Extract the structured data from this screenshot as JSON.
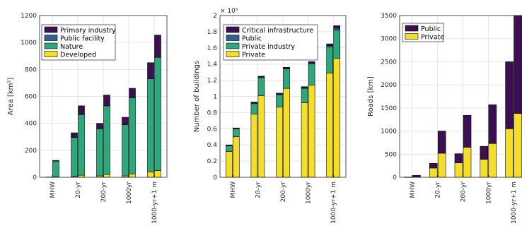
{
  "colors": {
    "purple": "#3b0f52",
    "blue": "#2f5f8a",
    "green": "#2ea87a",
    "yellow": "#f5de2a"
  },
  "chart_data": [
    {
      "type": "bar",
      "stacked": true,
      "grouped": true,
      "title": "",
      "xlabel": "",
      "ylabel": "Area [km²]",
      "ylim": [
        0,
        1200
      ],
      "yticks": [
        "0",
        "200",
        "400",
        "600",
        "800",
        "1000",
        "1200"
      ],
      "categories": [
        "MHW",
        "20-yr",
        "200-yr",
        "1000yr",
        "1000-yr+1 m"
      ],
      "grid": true,
      "legend_position": "top-left",
      "legend": [
        "Primary industry",
        "Public facility",
        "Nature",
        "Developed"
      ],
      "bars": [
        {
          "category": "MHW",
          "developed": 2,
          "nature": 0,
          "public_facility": 0,
          "primary_industry": 0
        },
        {
          "category": "MHW",
          "developed": 3,
          "nature": 117,
          "public_facility": 0,
          "primary_industry": 5
        },
        {
          "category": "20-yr",
          "developed": 5,
          "nature": 290,
          "public_facility": 0,
          "primary_industry": 35
        },
        {
          "category": "20-yr",
          "developed": 15,
          "nature": 450,
          "public_facility": 0,
          "primary_industry": 65
        },
        {
          "category": "200-yr",
          "developed": 10,
          "nature": 350,
          "public_facility": 0,
          "primary_industry": 40
        },
        {
          "category": "200-yr",
          "developed": 20,
          "nature": 510,
          "public_facility": 0,
          "primary_industry": 80
        },
        {
          "category": "1000yr",
          "developed": 10,
          "nature": 380,
          "public_facility": 0,
          "primary_industry": 55
        },
        {
          "category": "1000yr",
          "developed": 25,
          "nature": 565,
          "public_facility": 0,
          "primary_industry": 70
        },
        {
          "category": "1000-yr+1 m",
          "developed": 40,
          "nature": 690,
          "public_facility": 0,
          "primary_industry": 120
        },
        {
          "category": "1000-yr+1 m",
          "developed": 50,
          "nature": 840,
          "public_facility": 0,
          "primary_industry": 165
        }
      ]
    },
    {
      "type": "bar",
      "stacked": true,
      "grouped": true,
      "title": "",
      "xlabel": "",
      "ylabel": "Number of buildings",
      "y_multiplier": "× 10⁵",
      "ylim": [
        0,
        2
      ],
      "yticks": [
        "0",
        "0.2",
        "0.4",
        "0.6",
        "0.8",
        "1",
        "1.2",
        "1.4",
        "1.6",
        "1.8",
        "2"
      ],
      "categories": [
        "MHW",
        "20-yr",
        "200-yr",
        "1000yr",
        "1000-yr+1 m"
      ],
      "grid": true,
      "legend_position": "top-left",
      "legend": [
        "Critical infrastructure",
        "Public",
        "Private industry",
        "Private"
      ],
      "bars": [
        {
          "category": "MHW",
          "private": 0.32,
          "private_industry": 0.07,
          "public": 0.005,
          "critical_infrastructure": 0.005
        },
        {
          "category": "MHW",
          "private": 0.5,
          "private_industry": 0.1,
          "public": 0.005,
          "critical_infrastructure": 0.005
        },
        {
          "category": "20-yr",
          "private": 0.78,
          "private_industry": 0.13,
          "public": 0.01,
          "critical_infrastructure": 0.01
        },
        {
          "category": "20-yr",
          "private": 1.01,
          "private_industry": 0.22,
          "public": 0.01,
          "critical_infrastructure": 0.01
        },
        {
          "category": "200-yr",
          "private": 0.87,
          "private_industry": 0.15,
          "public": 0.01,
          "critical_infrastructure": 0.01
        },
        {
          "category": "200-yr",
          "private": 1.1,
          "private_industry": 0.24,
          "public": 0.01,
          "critical_infrastructure": 0.01
        },
        {
          "category": "1000yr",
          "private": 0.92,
          "private_industry": 0.18,
          "public": 0.01,
          "critical_infrastructure": 0.01
        },
        {
          "category": "1000yr",
          "private": 1.14,
          "private_industry": 0.26,
          "public": 0.015,
          "critical_infrastructure": 0.015
        },
        {
          "category": "1000-yr+1 m",
          "private": 1.29,
          "private_industry": 0.32,
          "public": 0.02,
          "critical_infrastructure": 0.02
        },
        {
          "category": "1000-yr+1 m",
          "private": 1.47,
          "private_industry": 0.35,
          "public": 0.025,
          "critical_infrastructure": 0.03
        }
      ]
    },
    {
      "type": "bar",
      "stacked": true,
      "grouped": true,
      "title": "",
      "xlabel": "",
      "ylabel": "Roads [km]",
      "ylim": [
        0,
        3500
      ],
      "yticks": [
        "0",
        "500",
        "1000",
        "1500",
        "2000",
        "2500",
        "3000",
        "3500"
      ],
      "categories": [
        "MHW",
        "20-yr",
        "200-yr",
        "1000yr",
        "1000-yr+1 m"
      ],
      "grid": true,
      "legend_position": "top-left",
      "legend": [
        "Public",
        "Private"
      ],
      "bars": [
        {
          "category": "MHW",
          "private": 3,
          "public": 2
        },
        {
          "category": "MHW",
          "private": 15,
          "public": 25
        },
        {
          "category": "20-yr",
          "private": 200,
          "public": 100
        },
        {
          "category": "20-yr",
          "private": 520,
          "public": 480
        },
        {
          "category": "200-yr",
          "private": 310,
          "public": 200
        },
        {
          "category": "200-yr",
          "private": 650,
          "public": 690
        },
        {
          "category": "1000yr",
          "private": 390,
          "public": 280
        },
        {
          "category": "1000yr",
          "private": 730,
          "public": 840
        },
        {
          "category": "1000-yr+1 m",
          "private": 1050,
          "public": 1450
        },
        {
          "category": "1000-yr+1 m",
          "private": 1380,
          "public": 2120
        }
      ]
    }
  ]
}
